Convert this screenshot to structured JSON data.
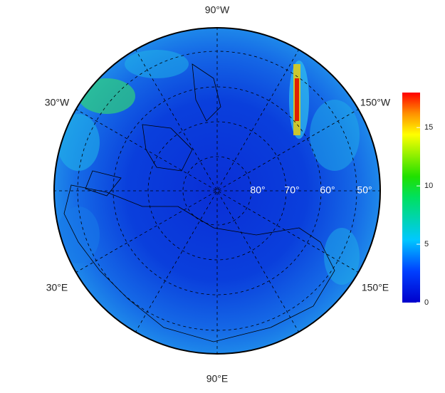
{
  "map": {
    "lon_labels": [
      "90°W",
      "30°W",
      "150°W",
      "30°E",
      "150°E",
      "90°E"
    ],
    "lat_labels": [
      "80°",
      "70°",
      "60°",
      "50°"
    ]
  },
  "colorbar": {
    "lim": [
      0,
      18
    ],
    "ticks": [
      0,
      5,
      10,
      15
    ]
  }
}
